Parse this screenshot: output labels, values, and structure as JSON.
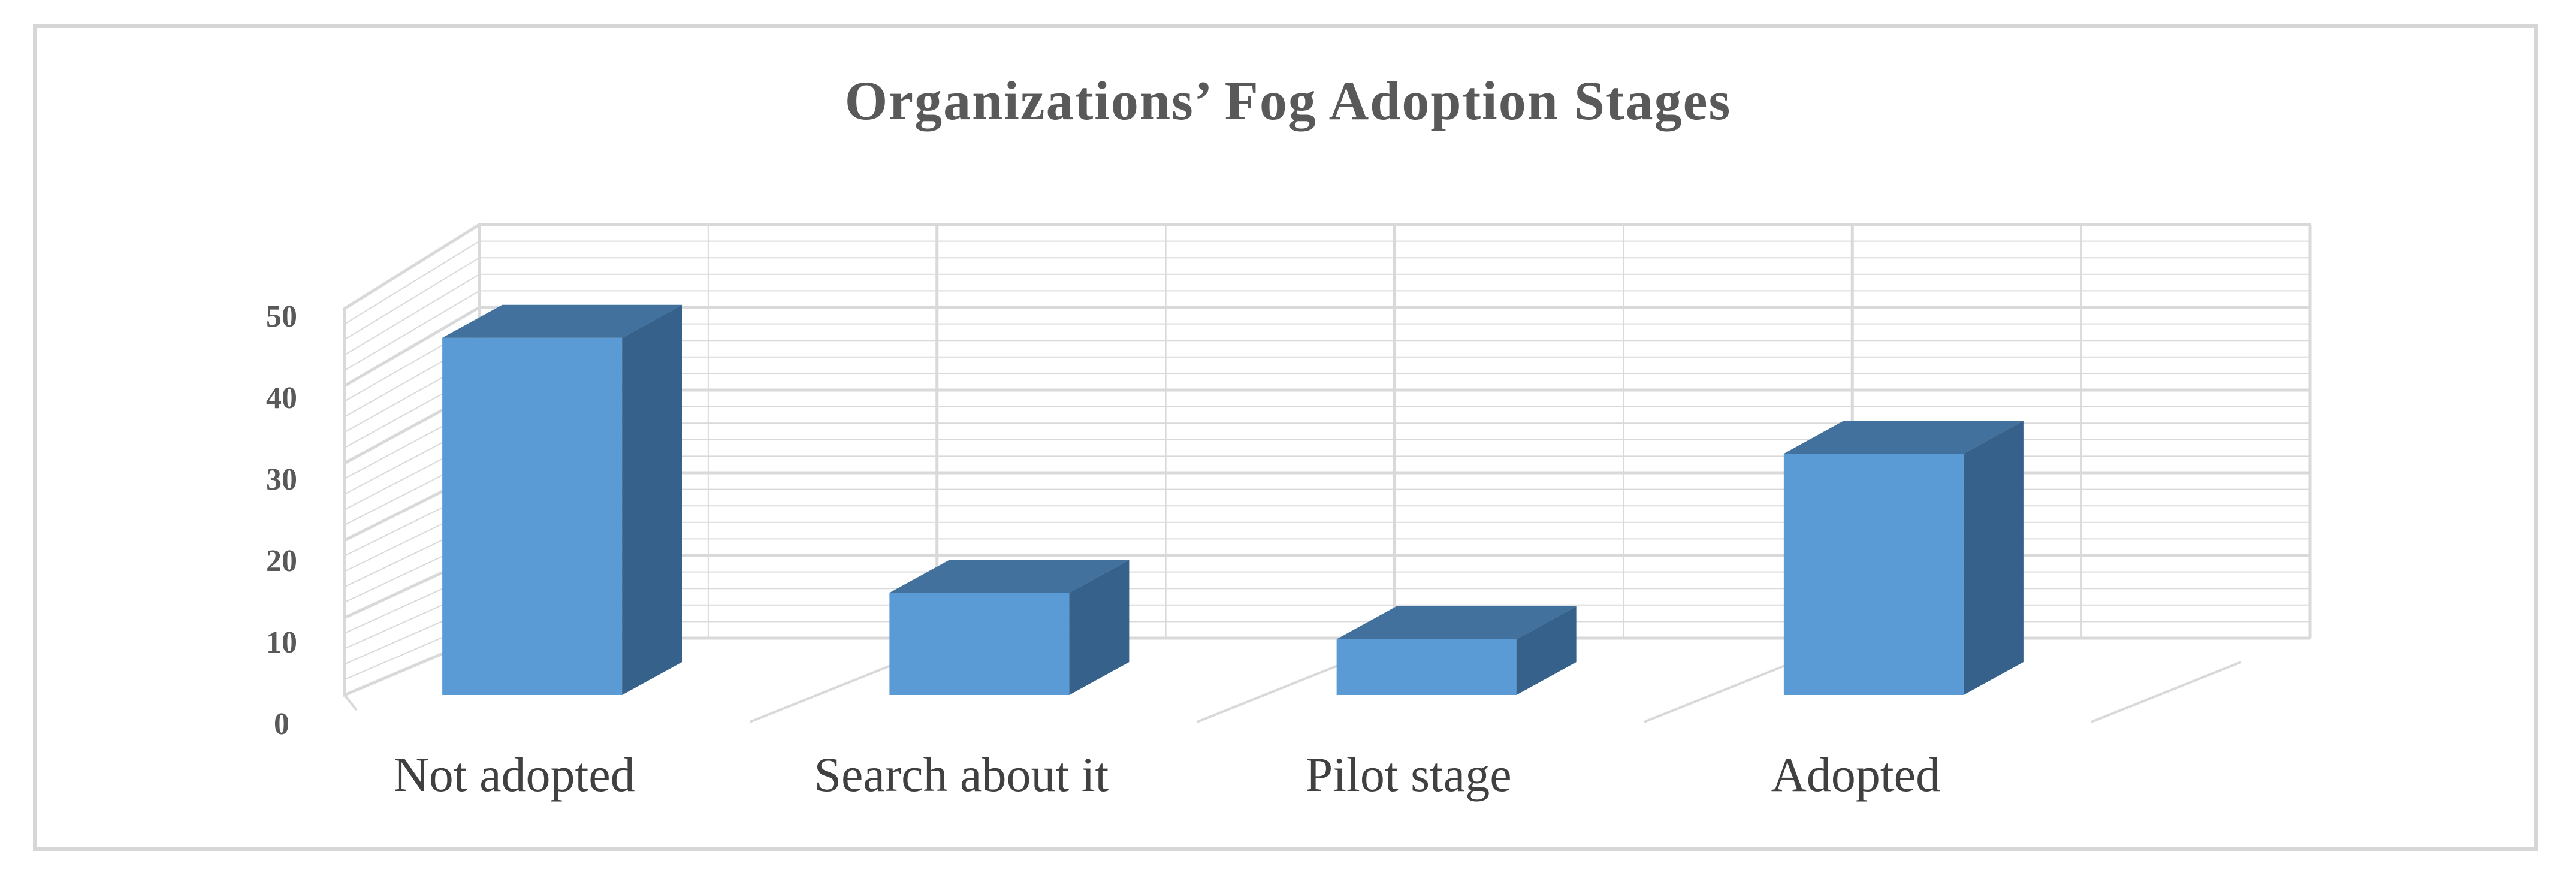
{
  "chart_data": {
    "type": "bar",
    "title": "Organizations’ Fog Adoption Stages",
    "categories": [
      "Not adopted",
      "Search about it",
      "Pilot stage",
      "Adopted"
    ],
    "values": [
      47,
      14,
      8,
      32
    ],
    "ylim": [
      0,
      50
    ],
    "yticks": [
      0,
      10,
      20,
      30,
      40,
      50
    ],
    "grid": true,
    "legend": "none",
    "style": "3d-column",
    "colors": {
      "bar_front": "#5b9bd5",
      "bar_top": "#41719c",
      "bar_side": "#35618b",
      "grid": "#d9d9d9"
    }
  }
}
